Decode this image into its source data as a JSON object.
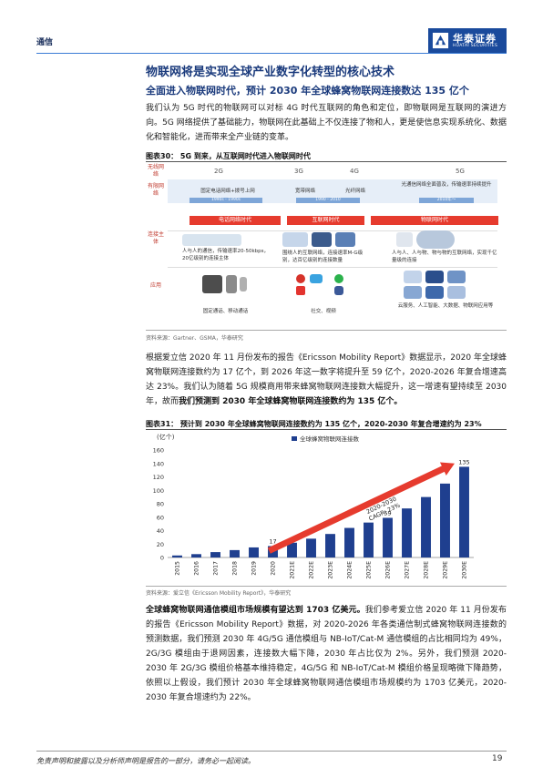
{
  "header": {
    "section": "通信",
    "logo_name": "华泰证券",
    "logo_en": "HUATAI SECURITIES"
  },
  "heading1": "物联网将是实现全球产业数字化转型的核心技术",
  "heading2": "全面进入物联网时代，预计 2030 年全球蜂窝物联网连接数达 135 亿个",
  "para1": "我们认为 5G 时代的物联网可以对标 4G 时代互联网的角色和定位，即物联网是互联网的演进方向。5G 网络提供了基础能力，物联网在此基础上不仅连接了物和人，更是使信息实现系统化、数据化和智能化，进而带来全产业链的变革。",
  "fig30": {
    "title": "图表30：  5G 到来，从互联网时代进入物联网时代",
    "row_network": "无线网络",
    "row_demand": "有限网络",
    "row_subject": "连接主体",
    "row_app": "应用",
    "gen_2g": "2G",
    "gen_3g": "3G",
    "gen_4g": "4G",
    "gen_5g": "5G",
    "band_left": "固定电话网络+拨号上网",
    "band_mid1": "宽带网络",
    "band_mid2": "光纤网络",
    "band_right": "光通信网络全面普及，传输速率持续提升",
    "yr1": "1990s - 1990s",
    "yr2": "1990 - 2010",
    "yr3": "2010年～",
    "era1": "电话网络时代",
    "era2": "互联网时代",
    "era3": "物联网时代",
    "desc1": "人与人的通信，传输速率20-50kbps，20亿级别的连接主体",
    "desc2": "围绕人的互联网络，连接速率M-G级别，达百亿级别的连接数量",
    "desc3": "人与人、人与物、物与物的互联网络，实现千亿量级的连接",
    "app1": "固定通话、移动通话",
    "app2": "社交、视频",
    "app3": "云服务、人工智能、大数据、物联网应用等",
    "source": "资料来源：Gartner、GSMA，华泰研究"
  },
  "para2_a": "根据爱立信 2020 年 11 月份发布的报告《Ericsson Mobility Report》数据显示，2020 年全球蜂窝物联网连接数约为 17 亿个，到 2026 年这一数字将提升至 59 亿个，2020-2026 年复合增速高达 23%。我们认为随着 5G 规模商用带来蜂窝物联网连接数大幅提升，这一增速有望持续至 2030 年，故而",
  "para2_b": "我们预测到 2030 年全球蜂窝物联网连接数约为 135 亿个。",
  "fig31": {
    "title": "图表31：  预计到 2030 年全球蜂窝物联网连接数约为 135 亿个，2020-2030 年复合增速约为 23%",
    "source": "资料来源：爱立信《Ericsson Mobility Report》，华泰研究"
  },
  "chart_data": {
    "type": "bar",
    "unit": "(亿个)",
    "legend": "全球蜂窝物联网连接数",
    "categories": [
      "2015",
      "2016",
      "2017",
      "2018",
      "2019",
      "2020",
      "2021E",
      "2022E",
      "2023E",
      "2024E",
      "2025E",
      "2026E",
      "2027E",
      "2028E",
      "2029E",
      "2030E"
    ],
    "values": [
      3,
      5,
      8,
      11,
      15,
      17,
      22,
      28,
      35,
      44,
      52,
      59,
      73,
      90,
      110,
      135
    ],
    "data_labels": {
      "5": "17",
      "11": "59",
      "15": "135"
    },
    "ylim": [
      0,
      160
    ],
    "yticks": [
      0,
      20,
      40,
      60,
      80,
      100,
      120,
      140,
      160
    ],
    "annotation": "2020-2030 CAGR: 23%",
    "bar_color": "#1f3f8f",
    "arrow_color": "#e63b2e",
    "legend_position": "top"
  },
  "para3_a": "全球蜂窝物联网通信模组市场规模有望达到 1703 亿美元。",
  "para3_b": "我们参考爱立信 2020 年 11 月份发布的报告《Ericsson Mobility Report》数据，对 2020-2026 年各类通信制式蜂窝物联网连接数的预测数据，我们预测 2030 年 4G/5G 通信模组与 NB-IoT/Cat-M 通信模组的占比相同均为 49%，2G/3G 模组由于退网因素，连接数大幅下降，2030 年占比仅为 2%。另外，我们预测 2020-2030 年 2G/3G 模组价格基本维持稳定，4G/5G 和 NB-IoT/Cat-M 模组价格呈现略微下降趋势，依照以上假设，我们预计 2030 年全球蜂窝物联网通信模组市场规模约为 1703 亿美元，2020-2030 年复合增速约为 22%。",
  "footer": {
    "disclaimer": "免责声明和披露以及分析师声明是报告的一部分，请务必一起阅读。",
    "page": "19"
  }
}
